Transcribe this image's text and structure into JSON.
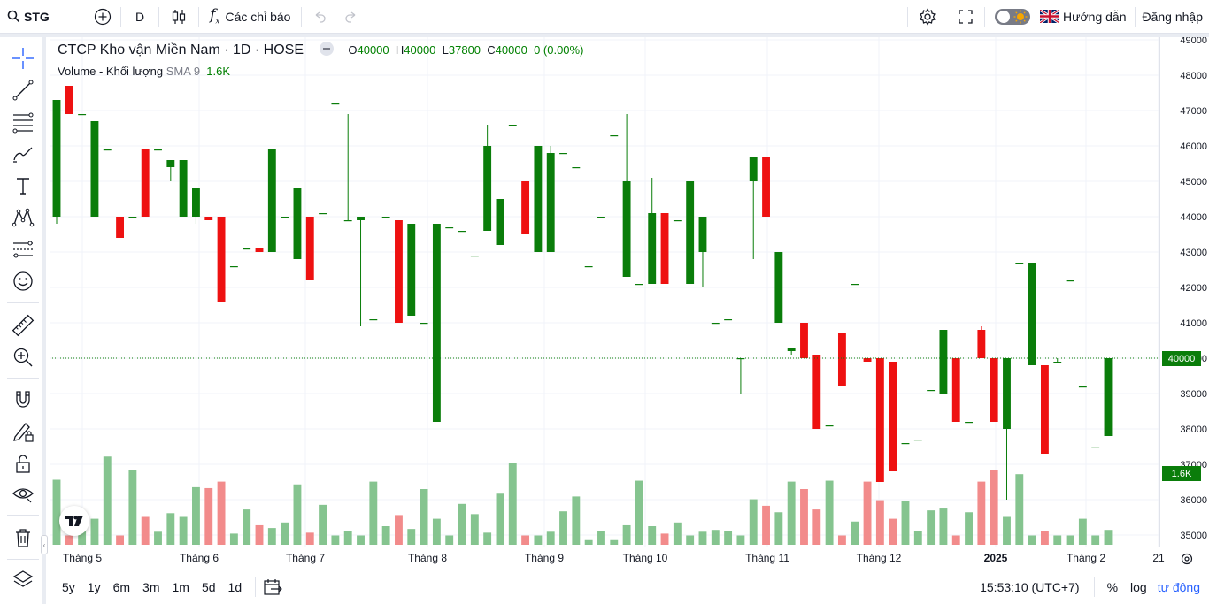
{
  "topbar": {
    "symbol": "STG",
    "interval": "D",
    "indicators_label": "Các chỉ báo",
    "guide_label": "Hướng dẫn",
    "login_label": "Đăng nhập"
  },
  "legend": {
    "title": "CTCP Kho vận Miền Nam · 1D · HOSE",
    "o_label": "O",
    "o_value": "40000",
    "h_label": "H",
    "h_value": "40000",
    "l_label": "L",
    "l_value": "37800",
    "c_label": "C",
    "c_value": "40000",
    "change": "0 (0.00%)"
  },
  "volume_legend": {
    "name": "Volume - Khối lượng",
    "sma": "SMA 9",
    "value": "1.6K"
  },
  "price_axis": {
    "ticks": [
      "49000",
      "48000",
      "47000",
      "46000",
      "45000",
      "44000",
      "43000",
      "42000",
      "41000",
      "40000",
      "39000",
      "38000",
      "37000",
      "36000",
      "35000"
    ],
    "current_price": "40000",
    "current_volume": "1.6K"
  },
  "time_axis": {
    "labels": [
      "Tháng 5",
      "Tháng 6",
      "Tháng 7",
      "Tháng 8",
      "Tháng 9",
      "Tháng 10",
      "Tháng 11",
      "Tháng 12",
      "2025",
      "Tháng 2",
      "21"
    ]
  },
  "bottombar": {
    "ranges": [
      "5y",
      "1y",
      "6m",
      "3m",
      "1m",
      "5d",
      "1d"
    ],
    "clock": "15:53:10 (UTC+7)",
    "percent": "%",
    "log": "log",
    "auto": "tự động"
  },
  "colors": {
    "up": "#0a7d0a",
    "down": "#ee1111",
    "vol_up": "#85c48f",
    "vol_down": "#f28b8b",
    "accent": "#2962ff"
  },
  "chart_data": {
    "type": "candlestick",
    "ylim": [
      34800,
      49000
    ],
    "ohlc": [
      [
        44000,
        47300,
        43800,
        47300
      ],
      [
        47700,
        47700,
        46900,
        46900
      ],
      [
        46900,
        46900,
        46900,
        46900
      ],
      [
        44000,
        46700,
        44000,
        46700
      ],
      [
        45900,
        45900,
        45900,
        45900
      ],
      [
        44000,
        44000,
        43400,
        43400
      ],
      [
        44000,
        44000,
        44000,
        44000
      ],
      [
        45900,
        45900,
        44000,
        44000
      ],
      [
        45900,
        45900,
        45900,
        45900
      ],
      [
        45400,
        45600,
        45000,
        45600
      ],
      [
        44000,
        45600,
        44000,
        45600
      ],
      [
        44000,
        44800,
        43800,
        44800
      ],
      [
        44000,
        44000,
        43900,
        43900
      ],
      [
        44000,
        44000,
        41600,
        41600
      ],
      [
        42600,
        42600,
        42600,
        42600
      ],
      [
        43100,
        43100,
        43100,
        43100
      ],
      [
        43100,
        43100,
        43000,
        43000
      ],
      [
        43000,
        45900,
        43000,
        45900
      ],
      [
        44000,
        44000,
        44000,
        44000
      ],
      [
        42800,
        44800,
        42800,
        44800
      ],
      [
        44000,
        44000,
        42200,
        42200
      ],
      [
        44100,
        44100,
        44100,
        44100
      ],
      [
        47200,
        47200,
        47200,
        47200
      ],
      [
        43900,
        46900,
        43900,
        43900
      ],
      [
        43900,
        44000,
        40900,
        44000
      ],
      [
        41100,
        41100,
        41100,
        41100
      ],
      [
        44000,
        44000,
        44000,
        44000
      ],
      [
        43900,
        43900,
        41000,
        41000
      ],
      [
        41200,
        43800,
        41200,
        43800
      ],
      [
        41000,
        41000,
        41000,
        41000
      ],
      [
        38200,
        43800,
        38200,
        43800
      ],
      [
        43700,
        43700,
        43700,
        43700
      ],
      [
        43600,
        43600,
        43600,
        43600
      ],
      [
        42900,
        42900,
        42900,
        42900
      ],
      [
        43600,
        46600,
        43600,
        46000
      ],
      [
        43200,
        44500,
        43200,
        44500
      ],
      [
        46600,
        46600,
        46600,
        46600
      ],
      [
        45000,
        45000,
        43500,
        43500
      ],
      [
        43000,
        46000,
        43000,
        46000
      ],
      [
        43000,
        46000,
        43000,
        45800
      ],
      [
        45800,
        45800,
        45800,
        45800
      ],
      [
        45400,
        45400,
        45400,
        45400
      ],
      [
        42600,
        42600,
        42600,
        42600
      ],
      [
        44000,
        44000,
        44000,
        44000
      ],
      [
        46300,
        46300,
        46300,
        46300
      ],
      [
        42300,
        46900,
        42300,
        45000
      ],
      [
        42100,
        42100,
        42100,
        42100
      ],
      [
        42100,
        45100,
        42100,
        44100
      ],
      [
        44100,
        44100,
        42100,
        42100
      ],
      [
        43900,
        43900,
        43900,
        43900
      ],
      [
        42100,
        45000,
        42100,
        45000
      ],
      [
        43000,
        44000,
        42000,
        44000
      ],
      [
        41000,
        41000,
        41000,
        41000
      ],
      [
        41100,
        41100,
        41100,
        41100
      ],
      [
        40000,
        40000,
        39000,
        40000
      ],
      [
        45000,
        45700,
        42800,
        45700
      ],
      [
        45700,
        45700,
        44000,
        44000
      ],
      [
        41000,
        43000,
        41000,
        43000
      ],
      [
        40200,
        40300,
        40100,
        40300
      ],
      [
        41000,
        41000,
        40000,
        40000
      ],
      [
        40100,
        40100,
        38000,
        38000
      ],
      [
        38100,
        38100,
        38100,
        38100
      ],
      [
        40700,
        40700,
        39200,
        39200
      ],
      [
        42100,
        42100,
        42100,
        42100
      ],
      [
        40000,
        40000,
        39900,
        39900
      ],
      [
        40000,
        40000,
        36500,
        36500
      ],
      [
        39900,
        39900,
        36800,
        36800
      ],
      [
        37600,
        37600,
        37600,
        37600
      ],
      [
        37700,
        37700,
        37700,
        37700
      ],
      [
        39100,
        39100,
        39100,
        39100
      ],
      [
        39000,
        40800,
        39000,
        40800
      ],
      [
        40000,
        40000,
        38200,
        38200
      ],
      [
        38200,
        38200,
        38200,
        38200
      ],
      [
        40800,
        40900,
        40000,
        40000
      ],
      [
        40000,
        40000,
        38200,
        38200
      ],
      [
        38000,
        40000,
        36000,
        40000
      ],
      [
        42700,
        42700,
        42700,
        42700
      ],
      [
        39800,
        42700,
        39800,
        42700
      ],
      [
        39800,
        39800,
        37300,
        37300
      ],
      [
        39900,
        40000,
        39900,
        39900
      ],
      [
        42200,
        42200,
        42200,
        42200
      ],
      [
        39200,
        39200,
        39200,
        39200
      ],
      [
        37500,
        37500,
        37500,
        37500
      ],
      [
        37800,
        40000,
        37800,
        40000
      ]
    ],
    "volume": [
      7.0,
      1.0,
      3.0,
      2.8,
      9.5,
      1.0,
      8.0,
      3.0,
      1.4,
      3.4,
      3.0,
      6.2,
      6.1,
      6.8,
      1.2,
      3.8,
      2.1,
      1.8,
      2.4,
      6.5,
      1.3,
      4.3,
      1.0,
      1.5,
      1.0,
      6.8,
      2.0,
      3.2,
      1.7,
      6.0,
      2.8,
      1.0,
      4.4,
      3.3,
      1.3,
      5.5,
      8.8,
      1.0,
      1.0,
      1.4,
      3.6,
      5.2,
      0.5,
      1.5,
      0.5,
      2.1,
      6.9,
      2.0,
      1.2,
      2.4,
      1.0,
      1.4,
      1.6,
      1.5,
      1.0,
      4.9,
      4.2,
      3.5,
      6.8,
      6.0,
      3.8,
      6.9,
      1.0,
      2.5,
      6.8,
      4.8,
      2.8,
      4.7,
      1.5,
      3.7,
      3.9,
      1.0,
      3.5,
      6.8,
      8.0,
      3.0,
      7.6,
      1.0,
      1.5,
      1.0,
      1.0,
      2.8,
      1.0,
      1.6
    ],
    "last_price": 40000,
    "last_volume": "1.6K"
  }
}
